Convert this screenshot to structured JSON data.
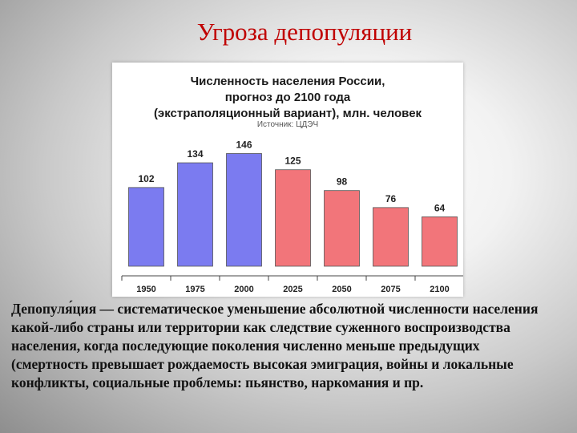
{
  "slide": {
    "title": "Угроза депопуляции",
    "definition": "Депопуля́ция — систематическое уменьшение абсолютной численности населения какой-либо страны или территории как следствие суженного воспроизводства населения, когда последующие поколения численно меньше предыдущих (смертность превышает рождаемость  высокая эмиграция, войны и локальные конфликты, социальные проблемы: пьянство, наркомания и пр."
  },
  "chart_data": {
    "type": "bar",
    "title_lines": [
      "Численность населения России,",
      "прогноз до 2100 года",
      "(экстраполяционный вариант), млн. человек"
    ],
    "source": "Источник: ЦДЭЧ",
    "categories": [
      "1950",
      "1975",
      "2000",
      "2025",
      "2050",
      "2075",
      "2100"
    ],
    "values": [
      102,
      134,
      146,
      125,
      98,
      76,
      64
    ],
    "data_labels": [
      "102",
      "134",
      "146",
      "125",
      "98",
      "76",
      "64"
    ],
    "ylim": [
      0,
      160
    ],
    "grid": false,
    "colors": {
      "actual": "#7b7bf0",
      "forecast": "#f2757a",
      "border": "#555555"
    },
    "bar_segments": [
      "actual",
      "actual",
      "actual",
      "forecast",
      "forecast",
      "forecast",
      "forecast"
    ]
  }
}
